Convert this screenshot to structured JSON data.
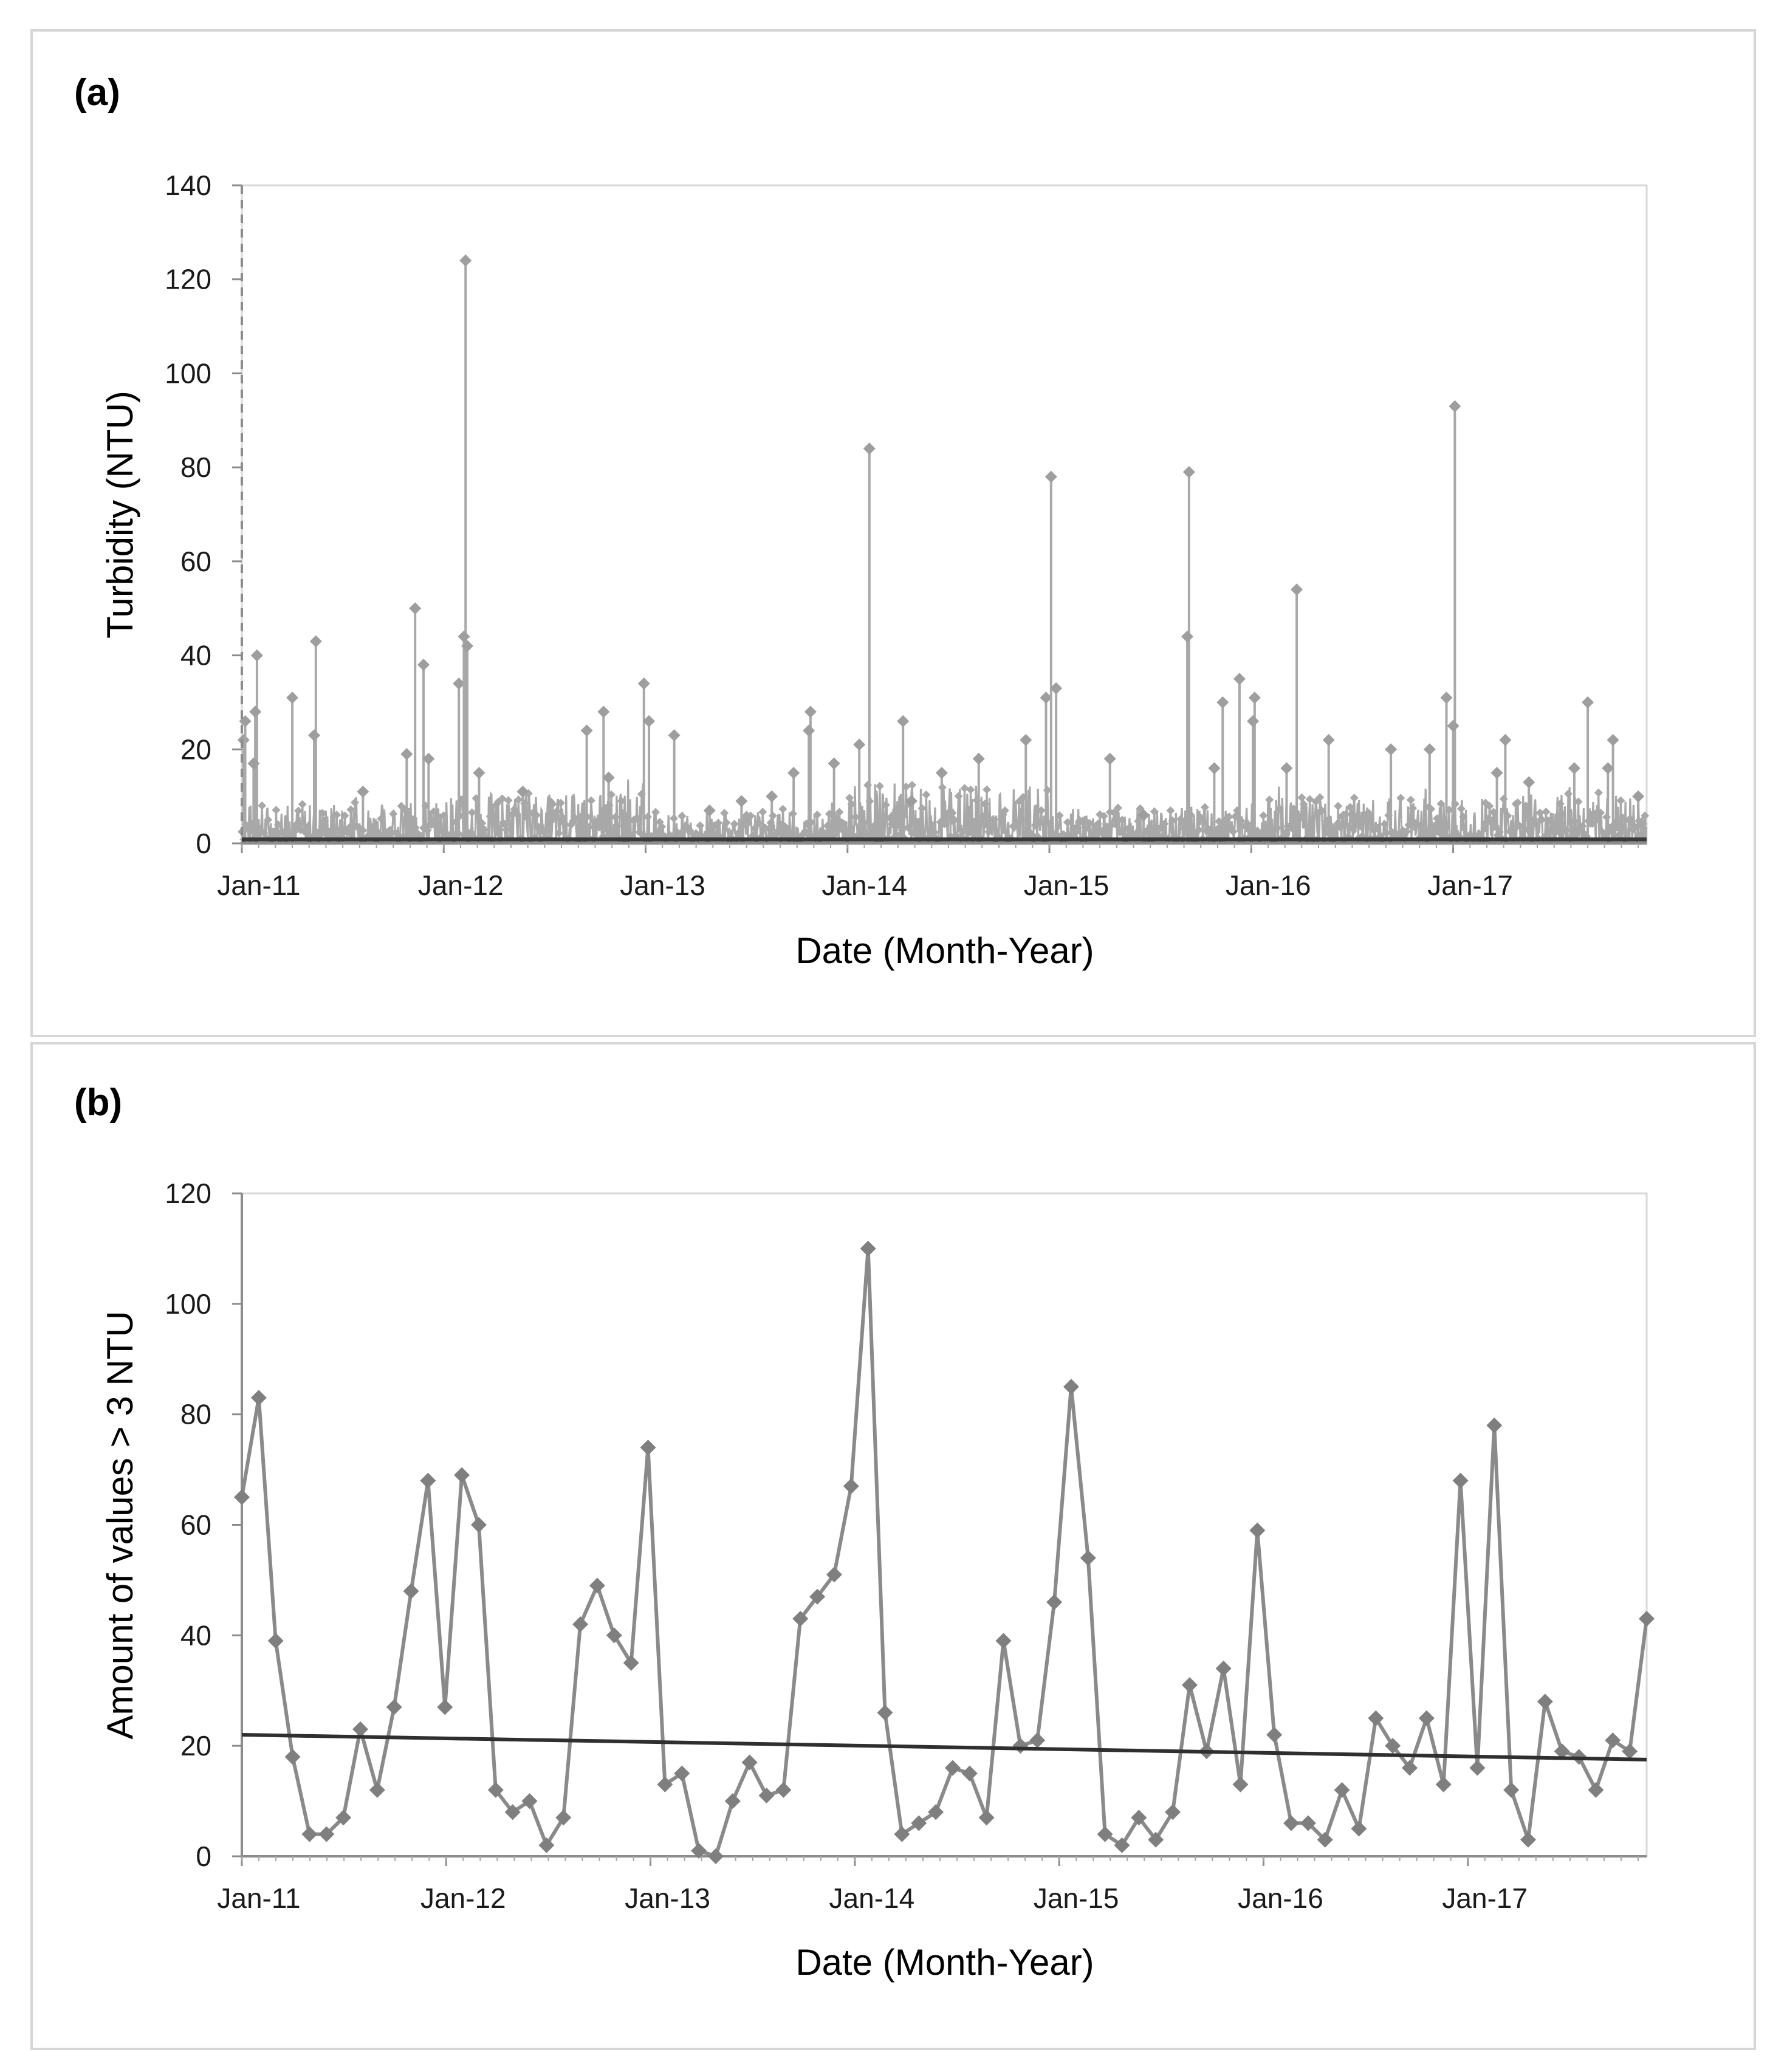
{
  "chart_data": [
    {
      "panel_label": "(a)",
      "type": "line",
      "xlabel": "Date (Month-Year)",
      "ylabel": "Turbidity (NTU)",
      "ylim": [
        0,
        140
      ],
      "yticks": [
        0,
        20,
        40,
        60,
        80,
        100,
        120,
        140
      ],
      "xlim": [
        0,
        83.5
      ],
      "xtick_labels": [
        "Jan-11",
        "Jan-12",
        "Jan-13",
        "Jan-14",
        "Jan-15",
        "Jan-16",
        "Jan-17"
      ],
      "xtick_positions": [
        0,
        12,
        24,
        36,
        48,
        60,
        72
      ],
      "baseline": 0.8,
      "noise_floor": [
        {
          "start": 0,
          "end": 12,
          "level": 8
        },
        {
          "start": 12,
          "end": 24,
          "level": 10
        },
        {
          "start": 24,
          "end": 36,
          "level": 6
        },
        {
          "start": 36,
          "end": 48,
          "level": 12
        },
        {
          "start": 48,
          "end": 60,
          "level": 7
        },
        {
          "start": 60,
          "end": 72,
          "level": 9
        },
        {
          "start": 72,
          "end": 83.5,
          "level": 10
        }
      ],
      "spikes": [
        {
          "x": 0.1,
          "y": 22
        },
        {
          "x": 0.2,
          "y": 26
        },
        {
          "x": 0.9,
          "y": 40
        },
        {
          "x": 0.8,
          "y": 28
        },
        {
          "x": 0.7,
          "y": 17
        },
        {
          "x": 3.0,
          "y": 31
        },
        {
          "x": 4.4,
          "y": 43
        },
        {
          "x": 4.3,
          "y": 23
        },
        {
          "x": 7.2,
          "y": 11
        },
        {
          "x": 9.8,
          "y": 19
        },
        {
          "x": 10.3,
          "y": 50
        },
        {
          "x": 10.8,
          "y": 38
        },
        {
          "x": 11.1,
          "y": 18
        },
        {
          "x": 12.9,
          "y": 34
        },
        {
          "x": 13.3,
          "y": 124
        },
        {
          "x": 13.2,
          "y": 44
        },
        {
          "x": 13.4,
          "y": 42
        },
        {
          "x": 14.1,
          "y": 15
        },
        {
          "x": 16.7,
          "y": 11
        },
        {
          "x": 20.5,
          "y": 24
        },
        {
          "x": 21.5,
          "y": 28
        },
        {
          "x": 21.8,
          "y": 14
        },
        {
          "x": 23.9,
          "y": 34
        },
        {
          "x": 24.2,
          "y": 26
        },
        {
          "x": 25.7,
          "y": 23
        },
        {
          "x": 27.8,
          "y": 7
        },
        {
          "x": 29.7,
          "y": 9
        },
        {
          "x": 31.5,
          "y": 10
        },
        {
          "x": 32.8,
          "y": 15
        },
        {
          "x": 33.8,
          "y": 28
        },
        {
          "x": 33.7,
          "y": 24
        },
        {
          "x": 35.2,
          "y": 17
        },
        {
          "x": 36.7,
          "y": 21
        },
        {
          "x": 37.3,
          "y": 84
        },
        {
          "x": 39.3,
          "y": 26
        },
        {
          "x": 39.8,
          "y": 9
        },
        {
          "x": 41.6,
          "y": 15
        },
        {
          "x": 43.8,
          "y": 18
        },
        {
          "x": 46.6,
          "y": 22
        },
        {
          "x": 47.8,
          "y": 31
        },
        {
          "x": 48.1,
          "y": 78
        },
        {
          "x": 48.4,
          "y": 33
        },
        {
          "x": 51.6,
          "y": 18
        },
        {
          "x": 53.6,
          "y": 6
        },
        {
          "x": 56.3,
          "y": 79
        },
        {
          "x": 56.2,
          "y": 44
        },
        {
          "x": 57.8,
          "y": 16
        },
        {
          "x": 58.3,
          "y": 30
        },
        {
          "x": 59.3,
          "y": 35
        },
        {
          "x": 60.2,
          "y": 31
        },
        {
          "x": 60.1,
          "y": 26
        },
        {
          "x": 62.1,
          "y": 16
        },
        {
          "x": 62.7,
          "y": 54
        },
        {
          "x": 64.6,
          "y": 22
        },
        {
          "x": 68.3,
          "y": 20
        },
        {
          "x": 70.6,
          "y": 20
        },
        {
          "x": 71.6,
          "y": 31
        },
        {
          "x": 72.1,
          "y": 93
        },
        {
          "x": 72.0,
          "y": 25
        },
        {
          "x": 74.6,
          "y": 15
        },
        {
          "x": 75.1,
          "y": 22
        },
        {
          "x": 76.5,
          "y": 13
        },
        {
          "x": 79.2,
          "y": 16
        },
        {
          "x": 80.0,
          "y": 30
        },
        {
          "x": 81.5,
          "y": 22
        },
        {
          "x": 81.2,
          "y": 16
        },
        {
          "x": 83.0,
          "y": 10
        }
      ]
    },
    {
      "panel_label": "(b)",
      "type": "line",
      "xlabel": "Date (Month-Year)",
      "ylabel": "Amount of values > 3 NTU",
      "ylim": [
        0,
        120
      ],
      "yticks": [
        0,
        20,
        40,
        60,
        80,
        100,
        120
      ],
      "xlim": [
        0,
        82.5
      ],
      "xtick_labels": [
        "Jan-11",
        "Jan-12",
        "Jan-13",
        "Jan-14",
        "Jan-15",
        "Jan-16",
        "Jan-17"
      ],
      "xtick_positions": [
        0,
        12,
        24,
        36,
        48,
        60,
        72
      ],
      "values": [
        65,
        83,
        39,
        18,
        4,
        4,
        7,
        23,
        12,
        27,
        48,
        68,
        27,
        69,
        60,
        12,
        8,
        10,
        2,
        7,
        42,
        49,
        40,
        35,
        74,
        13,
        15,
        1,
        0,
        10,
        17,
        11,
        12,
        43,
        47,
        51,
        67,
        110,
        26,
        4,
        6,
        8,
        16,
        15,
        7,
        39,
        20,
        21,
        46,
        85,
        54,
        4,
        2,
        7,
        3,
        8,
        31,
        19,
        34,
        13,
        59,
        22,
        6,
        6,
        3,
        12,
        5,
        25,
        20,
        16,
        25,
        13,
        68,
        16,
        78,
        12,
        3,
        28,
        19,
        18,
        12,
        21,
        19,
        43
      ],
      "trendline": {
        "start": 22,
        "end": 17.5
      }
    }
  ]
}
